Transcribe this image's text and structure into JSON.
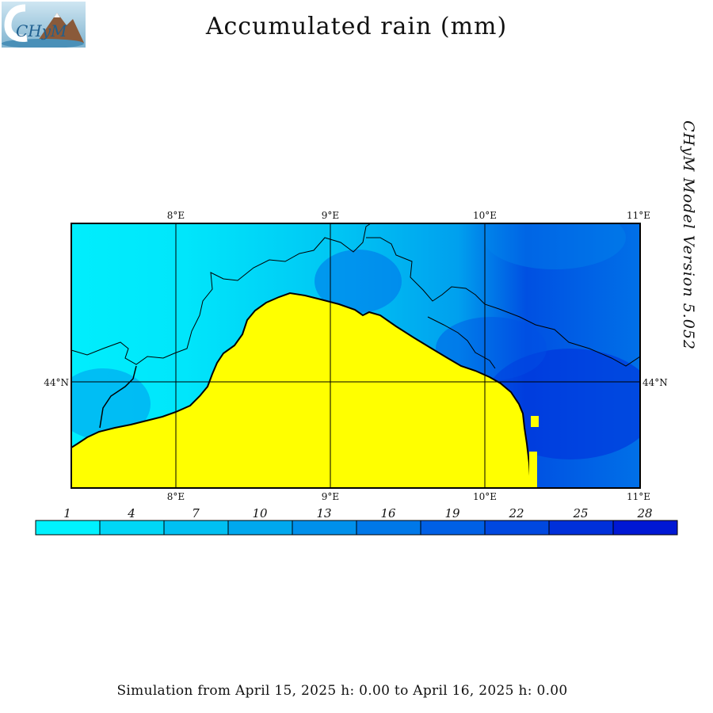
{
  "header": {
    "logo_text": "CHyM",
    "title": "Accumulated rain (mm)"
  },
  "side_label": "CHyM Model Version 5.052",
  "map": {
    "lon_labels_top": [
      "8°E",
      "9°E",
      "10°E",
      "11°E"
    ],
    "lon_labels_bottom": [
      "8°E",
      "9°E",
      "10°E",
      "11°E"
    ],
    "lat_label_left": "44°N",
    "lat_label_right": "44°N",
    "colors": {
      "sea": "#ffff00",
      "coast": "#000000"
    }
  },
  "legend": {
    "labels": [
      "1",
      "4",
      "7",
      "10",
      "13",
      "16",
      "19",
      "22",
      "25",
      "28"
    ],
    "colors": [
      "#00f2fe",
      "#00d6f6",
      "#00c0f2",
      "#00a8ee",
      "#0090eb",
      "#0078e8",
      "#0060e6",
      "#0048e0",
      "#0030da",
      "#0018d4"
    ]
  },
  "footer": "Simulation from April 15, 2025 h: 0.00 to April 16, 2025 h: 0.00"
}
